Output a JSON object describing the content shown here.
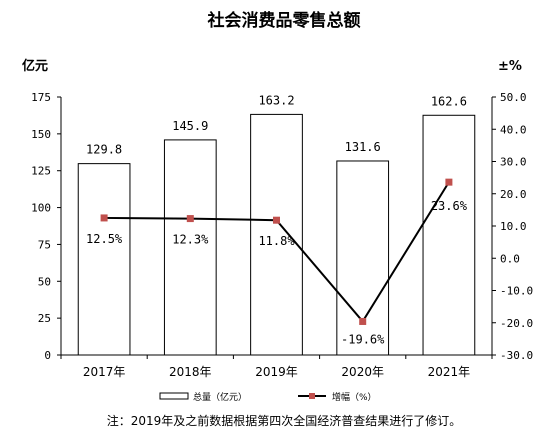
{
  "chart_data": {
    "type": "bar",
    "title": "社会消费品零售总额",
    "y_left_unit": "亿元",
    "y_right_unit": "±%",
    "categories": [
      "2017年",
      "2018年",
      "2019年",
      "2020年",
      "2021年"
    ],
    "series": [
      {
        "name": "总量（亿元）",
        "type": "bar",
        "axis": "left",
        "values": [
          129.8,
          145.9,
          163.2,
          131.6,
          162.6
        ],
        "labels": [
          "129.8",
          "145.9",
          "163.2",
          "131.6",
          "162.6"
        ]
      },
      {
        "name": "增幅（%）",
        "type": "line",
        "axis": "right",
        "values": [
          12.5,
          12.3,
          11.8,
          -19.6,
          23.6
        ],
        "labels": [
          "12.5%",
          "12.3%",
          "11.8%",
          "-19.6%",
          "23.6%"
        ]
      }
    ],
    "ylim_left": [
      0,
      175
    ],
    "ylim_right": [
      -30,
      50
    ],
    "yticks_left": [
      "175",
      "150",
      "125",
      "100",
      "75",
      "50",
      "25",
      "0"
    ],
    "yticks_right": [
      "50.0",
      "40.0",
      "30.0",
      "20.0",
      "10.0",
      "0.0",
      "-10.0",
      "-20.0",
      "-30.0"
    ],
    "grid": false,
    "legend_position": "bottom",
    "colors": {
      "bar_fill": "#ffffff",
      "bar_stroke": "#000000",
      "line": "#000000",
      "marker": "#c0504d"
    }
  },
  "footnote": "注：2019年及之前数据根据第四次全国经济普查结果进行了修订。"
}
